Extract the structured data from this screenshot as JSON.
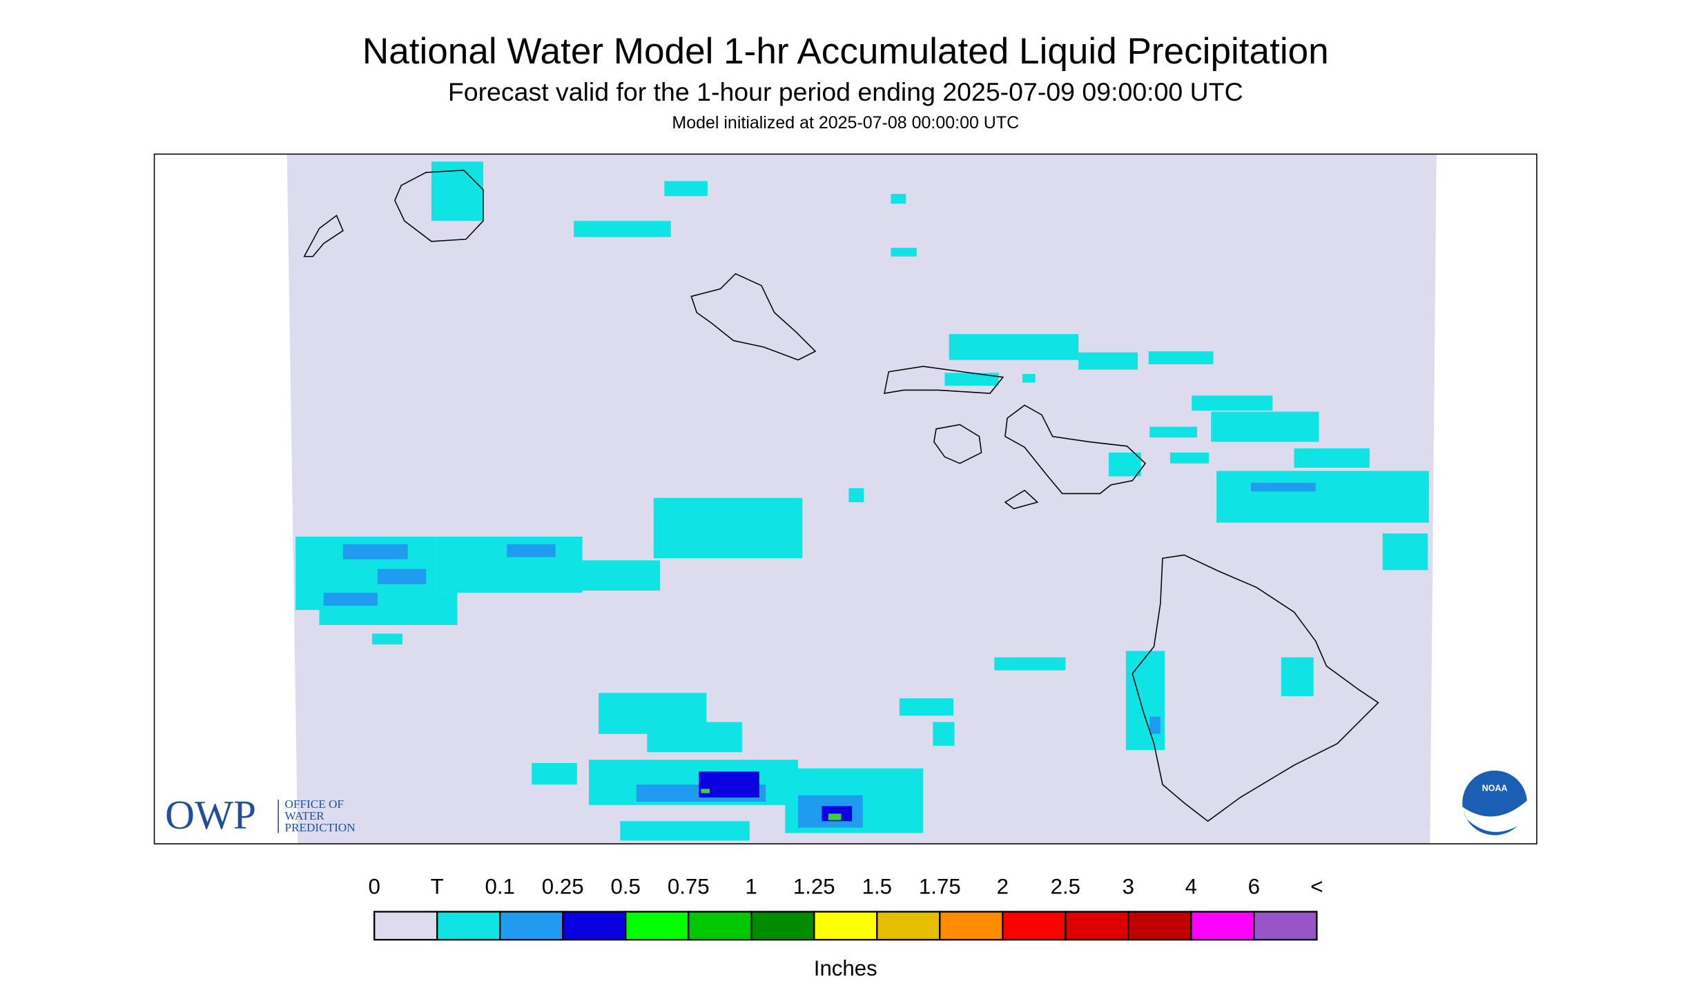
{
  "header": {
    "title": "National Water Model 1-hr Accumulated Liquid Precipitation",
    "subtitle": "Forecast valid for the 1-hour period ending 2025-07-09 09:00:00 UTC",
    "init": "Model initialized at 2025-07-08 00:00:00 UTC"
  },
  "legend": {
    "labels": [
      "0",
      "T",
      "0.1",
      "0.25",
      "0.5",
      "0.75",
      "1",
      "1.25",
      "1.5",
      "1.75",
      "2",
      "2.5",
      "3",
      "4",
      "6",
      "<"
    ],
    "colors": [
      "#dcdcee",
      "#0fe3e3",
      "#1f9cf0",
      "#0a00e0",
      "#00ff00",
      "#00c800",
      "#008c00",
      "#ffff00",
      "#e6be00",
      "#ff8c00",
      "#ff0000",
      "#dc0000",
      "#be0000",
      "#ff00ff",
      "#9955c8"
    ],
    "unit": "Inches"
  },
  "logos": {
    "owp": "OWP",
    "owp_lines": [
      "OFFICE OF",
      "WATER",
      "PREDICTION"
    ],
    "noaa": "NOAA"
  }
}
